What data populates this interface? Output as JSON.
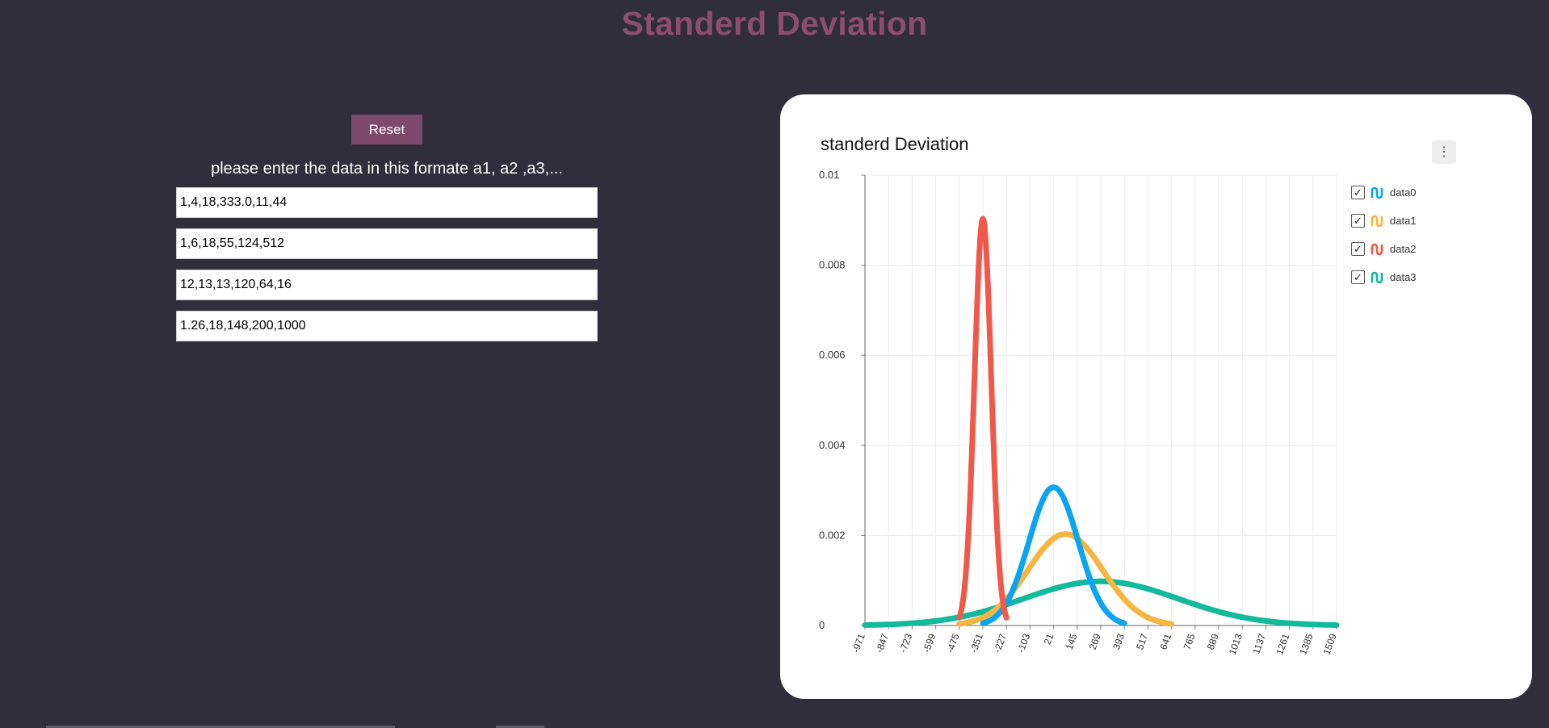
{
  "page": {
    "title": "Standerd Deviation",
    "title_color": "#8c4d6e"
  },
  "controls": {
    "reset_label": "Reset",
    "reset_color": "#7d4a6a",
    "instructions": "please enter the data in this formate a1, a2 ,a3,...",
    "inputs": [
      {
        "value": "1,4,18,333.0,11,44"
      },
      {
        "value": "1,6,18,55,124,512"
      },
      {
        "value": "12,13,13,120,64,16"
      },
      {
        "value": "1.26,18,148,200,1000"
      }
    ]
  },
  "chart": {
    "title": "standerd Deviation",
    "menu_icon": "vertical-dots-icon",
    "menu_glyph": "⋮"
  },
  "chart_data": {
    "type": "line",
    "title": "standerd Deviation",
    "xlabel": "",
    "ylabel": "",
    "x_ticks": [
      "-971",
      "-847",
      "-723",
      "-599",
      "-475",
      "-351",
      "-227",
      "-103",
      "21",
      "145",
      "269",
      "393",
      "517",
      "641",
      "765",
      "889",
      "1013",
      "1137",
      "1261",
      "1385",
      "1509"
    ],
    "xlim": [
      -971,
      1509
    ],
    "y_ticks": [
      "0",
      "0.002",
      "0.004",
      "0.006",
      "0.008",
      "0.01"
    ],
    "ylim": [
      0,
      0.01
    ],
    "grid": true,
    "legend_position": "right",
    "series": [
      {
        "name": "data0",
        "color": "#0ba4f0",
        "peak_x": 21,
        "peak_y": 0.00307,
        "x_min": -351,
        "x_max": 393
      },
      {
        "name": "data1",
        "color": "#f6b53f",
        "peak_x": 83,
        "peak_y": 0.00203,
        "x_min": -475,
        "x_max": 641
      },
      {
        "name": "data2",
        "color": "#f0594a",
        "peak_x": -351,
        "peak_y": 0.00903,
        "x_min": -475,
        "x_max": -227
      },
      {
        "name": "data3",
        "color": "#12b99a",
        "peak_x": 269,
        "peak_y": 0.00098,
        "x_min": -971,
        "x_max": 1509
      }
    ]
  }
}
